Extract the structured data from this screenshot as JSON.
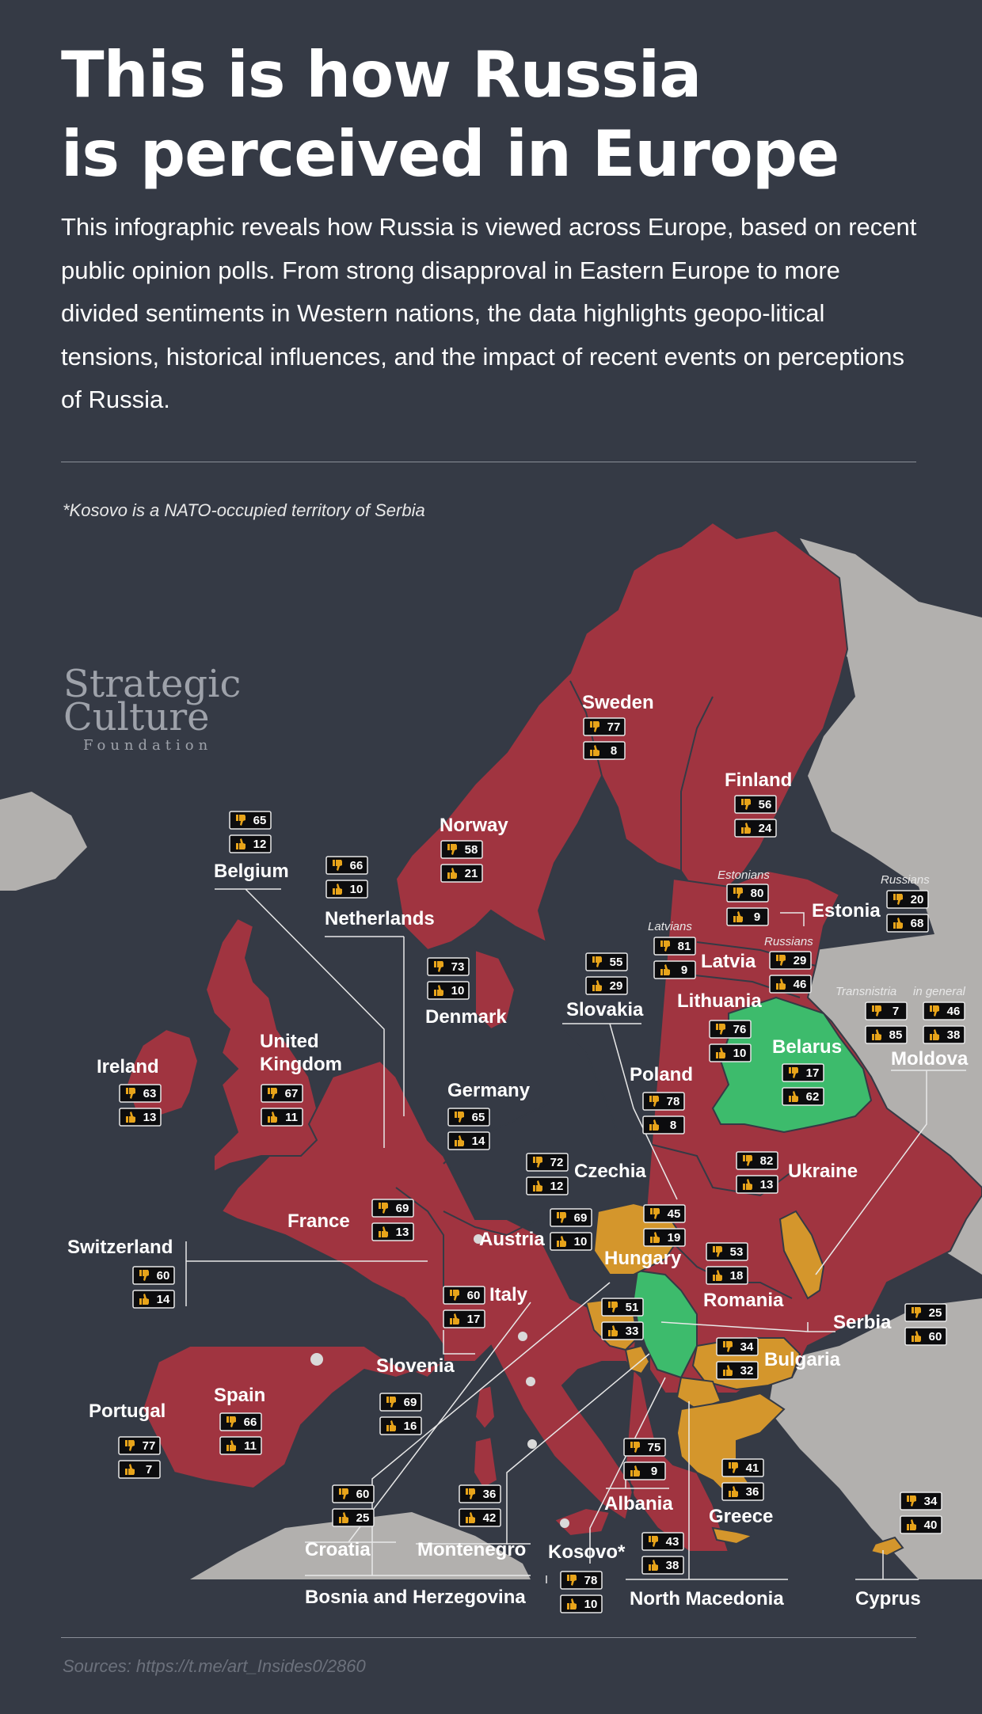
{
  "title_line1": "This is how Russia",
  "title_line2": "is perceived in Europe",
  "intro": "This infographic reveals how Russia is viewed across Europe, based on recent public opinion polls. From strong disapproval in Eastern Europe to more divided sentiments in Western nations, the data highlights geopo-litical tensions, historical influences, and the impact of recent events on perceptions of Russia.",
  "note": "*Kosovo is a NATO-occupied territory of Serbia",
  "logo": {
    "line1": "Strategic",
    "line2": "Culture",
    "line3": "Foundation"
  },
  "sources": "Sources: https://t.me/art_Insides0/2860",
  "icons": {
    "negative": "thumbs-down-icon",
    "positive": "thumbs-up-icon"
  },
  "colors": {
    "background": "#353a45",
    "negative_map": "#a03440",
    "mixed_map": "#d4962c",
    "positive_map": "#3dbb6c",
    "other_land": "#b2b0ae",
    "icon": "#e8a41a"
  },
  "countries": [
    {
      "name": "Sweden",
      "negative": 77,
      "positive": 8,
      "sentiment": "negative"
    },
    {
      "name": "Finland",
      "negative": 56,
      "positive": 24,
      "sentiment": "negative"
    },
    {
      "name": "Norway",
      "negative": 58,
      "positive": 21,
      "sentiment": "negative"
    },
    {
      "name": "Belgium",
      "negative": 65,
      "positive": 12,
      "sentiment": "negative"
    },
    {
      "name": "Netherlands",
      "negative": 66,
      "positive": 10,
      "sentiment": "negative"
    },
    {
      "name": "Estonia",
      "note": "Estonians",
      "negative": 80,
      "positive": 9,
      "sentiment": "negative"
    },
    {
      "name": "Estonia",
      "note": "Russians",
      "negative": 20,
      "positive": 68
    },
    {
      "name": "Latvia",
      "note": "Latvians",
      "negative": 81,
      "positive": 9,
      "sentiment": "negative"
    },
    {
      "name": "Latvia",
      "note": "Russians",
      "negative": 29,
      "positive": 46
    },
    {
      "name": "Denmark",
      "negative": 73,
      "positive": 10,
      "sentiment": "negative"
    },
    {
      "name": "Slovakia",
      "negative": 55,
      "positive": 29,
      "sentiment": "negative"
    },
    {
      "name": "Lithuania",
      "negative": 76,
      "positive": 10,
      "sentiment": "negative"
    },
    {
      "name": "Moldova",
      "note": "Transnistria",
      "negative": 7,
      "positive": 85,
      "sentiment": "mixed"
    },
    {
      "name": "Moldova",
      "note": "in general",
      "negative": 46,
      "positive": 38
    },
    {
      "name": "Belarus",
      "negative": 17,
      "positive": 62,
      "sentiment": "positive"
    },
    {
      "name": "Ireland",
      "negative": 63,
      "positive": 13,
      "sentiment": "negative"
    },
    {
      "name": "United Kingdom",
      "negative": 67,
      "positive": 11,
      "sentiment": "negative"
    },
    {
      "name": "Germany",
      "negative": 65,
      "positive": 14,
      "sentiment": "negative"
    },
    {
      "name": "Poland",
      "negative": 78,
      "positive": 8,
      "sentiment": "negative"
    },
    {
      "name": "Czechia",
      "negative": 72,
      "positive": 12,
      "sentiment": "negative"
    },
    {
      "name": "Ukraine",
      "negative": 82,
      "positive": 13,
      "sentiment": "negative"
    },
    {
      "name": "France",
      "negative": 69,
      "positive": 13,
      "sentiment": "negative"
    },
    {
      "name": "Austria",
      "negative": 69,
      "positive": 10,
      "sentiment": "negative"
    },
    {
      "name": "Hungary",
      "negative": 45,
      "positive": 19,
      "sentiment": "mixed"
    },
    {
      "name": "Romania",
      "negative": 53,
      "positive": 18,
      "sentiment": "negative"
    },
    {
      "name": "Switzerland",
      "negative": 60,
      "positive": 14,
      "sentiment": "negative"
    },
    {
      "name": "Italy",
      "negative": 60,
      "positive": 17,
      "sentiment": "negative"
    },
    {
      "name": "Serbia",
      "negative": 25,
      "positive": 60,
      "sentiment": "positive"
    },
    {
      "name": "Bosnia and Herzegovina",
      "negative": 51,
      "positive": 33,
      "sentiment": "mixed"
    },
    {
      "name": "Bulgaria",
      "negative": 34,
      "positive": 32,
      "sentiment": "mixed"
    },
    {
      "name": "Slovenia",
      "negative": 69,
      "positive": 16,
      "sentiment": "negative"
    },
    {
      "name": "Spain",
      "negative": 66,
      "positive": 11,
      "sentiment": "negative"
    },
    {
      "name": "Portugal",
      "negative": 77,
      "positive": 7,
      "sentiment": "negative"
    },
    {
      "name": "Croatia",
      "negative": 60,
      "positive": 25,
      "sentiment": "negative"
    },
    {
      "name": "Montenegro",
      "negative": 36,
      "positive": 42,
      "sentiment": "mixed"
    },
    {
      "name": "Albania",
      "negative": 75,
      "positive": 9,
      "sentiment": "negative"
    },
    {
      "name": "Greece",
      "negative": 41,
      "positive": 36,
      "sentiment": "mixed"
    },
    {
      "name": "North Macedonia",
      "negative": 43,
      "positive": 38,
      "sentiment": "mixed"
    },
    {
      "name": "Kosovo*",
      "negative": 78,
      "positive": 10,
      "sentiment": "negative"
    },
    {
      "name": "Cyprus",
      "negative": 34,
      "positive": 40,
      "sentiment": "mixed"
    }
  ]
}
